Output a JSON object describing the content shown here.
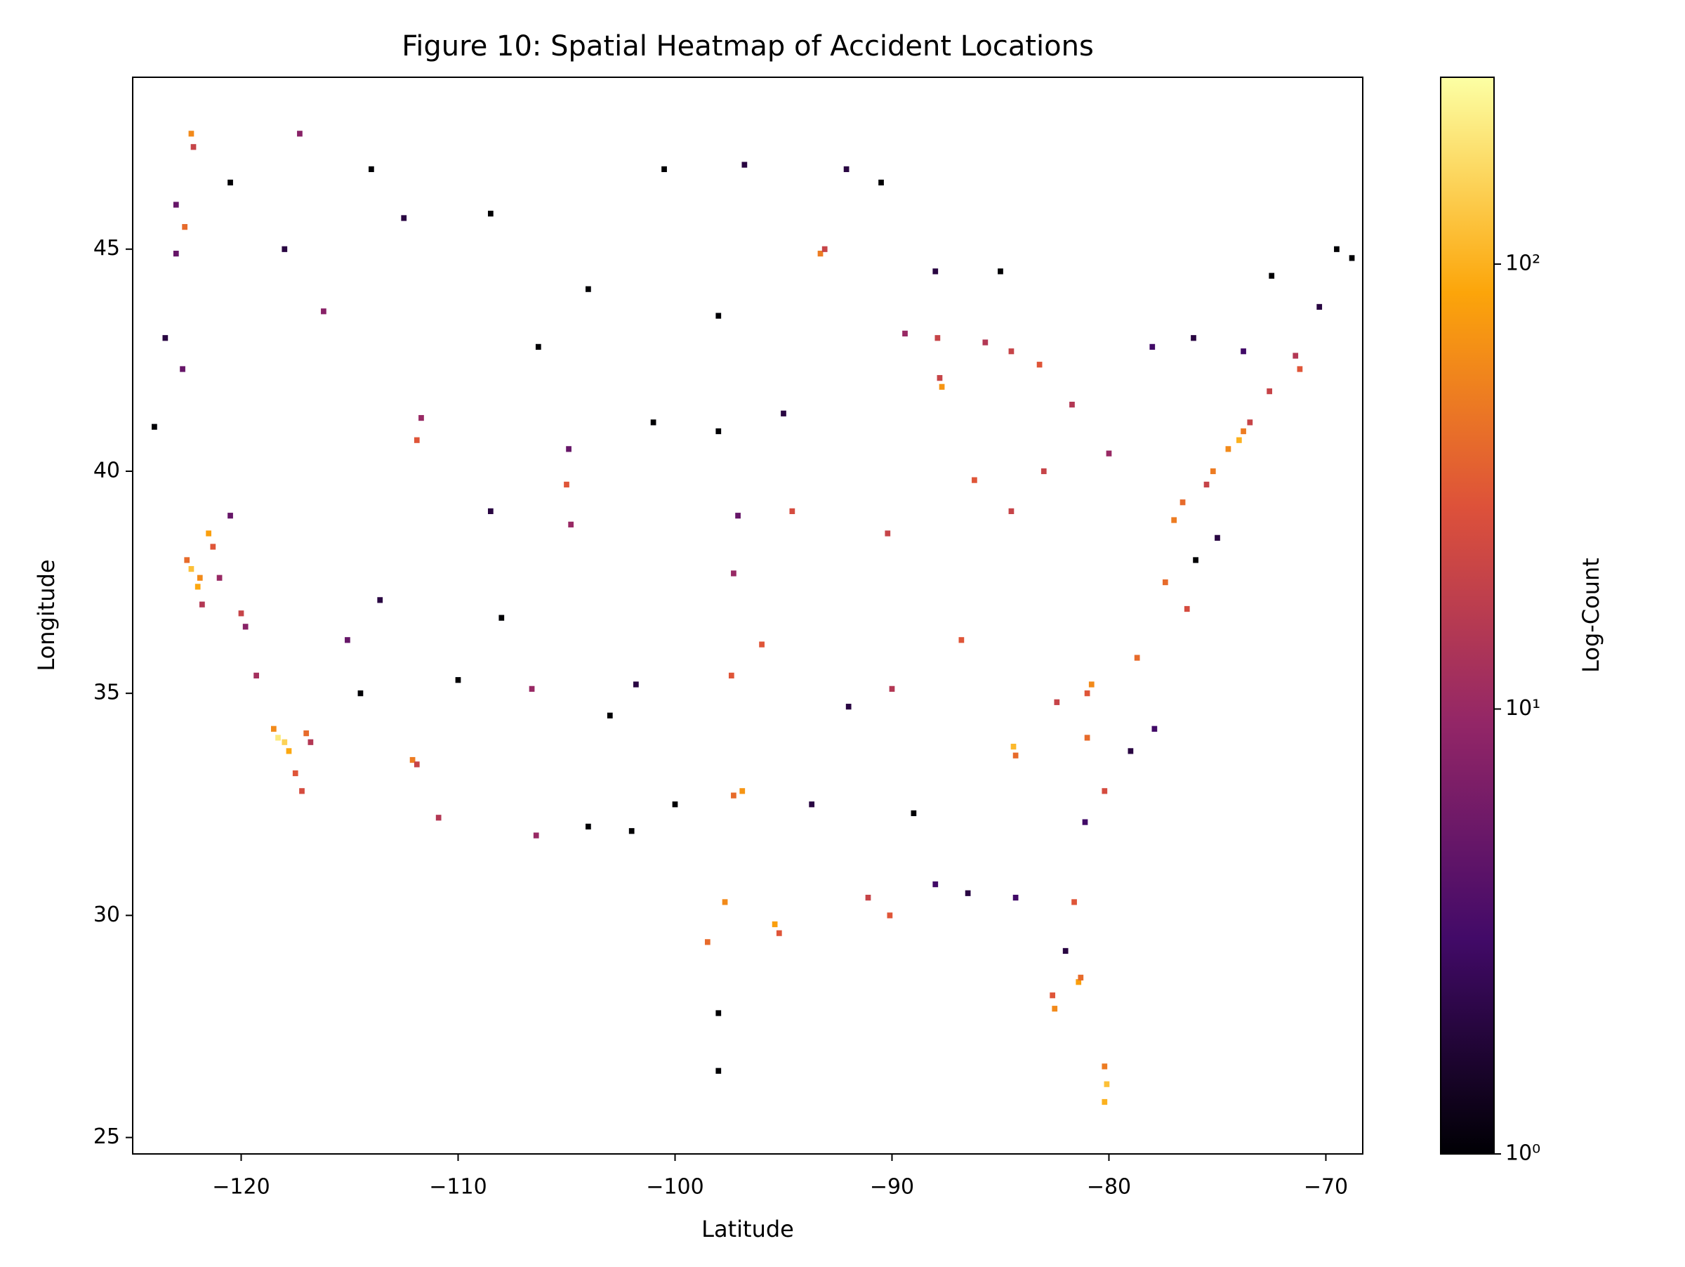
{
  "chart_data": {
    "type": "heatmap2d",
    "title": "Figure 10: Spatial Heatmap of Accident Locations",
    "x_label": "Latitude",
    "y_label": "Longitude",
    "colorbar_label": "Log-Count",
    "xlim": [
      -125.0,
      -68.3
    ],
    "ylim": [
      24.63,
      48.87
    ],
    "xticks": [
      {
        "value": -120,
        "label": "−120"
      },
      {
        "value": -110,
        "label": "−110"
      },
      {
        "value": -100,
        "label": "−100"
      },
      {
        "value": -90,
        "label": "−90"
      },
      {
        "value": -80,
        "label": "−80"
      },
      {
        "value": -70,
        "label": "−70"
      }
    ],
    "yticks": [
      25,
      30,
      35,
      40,
      45
    ],
    "clim": [
      1,
      263
    ],
    "color_scale": "log",
    "cticks": [
      {
        "value": 1,
        "label": "10⁰"
      },
      {
        "value": 10,
        "label": "10¹"
      },
      {
        "value": 100,
        "label": "10²"
      }
    ],
    "colormap": [
      "#000004",
      "#420a68",
      "#932667",
      "#dd513a",
      "#fca50a",
      "#fcffa4"
    ],
    "bin_width": 0.25,
    "bin_height": 0.13,
    "cells": [
      [
        -118.3,
        34.0,
        200
      ],
      [
        -118.0,
        33.9,
        150
      ],
      [
        -117.8,
        33.7,
        90
      ],
      [
        -118.5,
        34.2,
        60
      ],
      [
        -117.5,
        33.2,
        30
      ],
      [
        -117.2,
        32.8,
        25
      ],
      [
        -117.0,
        34.1,
        40
      ],
      [
        -116.8,
        33.9,
        15
      ],
      [
        -122.3,
        37.8,
        120
      ],
      [
        -122.0,
        37.4,
        90
      ],
      [
        -121.9,
        37.6,
        60
      ],
      [
        -121.5,
        38.6,
        80
      ],
      [
        -121.3,
        38.3,
        30
      ],
      [
        -122.5,
        38.0,
        40
      ],
      [
        -121.8,
        37.0,
        15
      ],
      [
        -121.0,
        37.6,
        10
      ],
      [
        -120.0,
        36.8,
        20
      ],
      [
        -119.8,
        36.5,
        8
      ],
      [
        -119.3,
        35.4,
        12
      ],
      [
        -120.5,
        39.0,
        5
      ],
      [
        -122.6,
        45.5,
        40
      ],
      [
        -122.3,
        47.6,
        60
      ],
      [
        -122.2,
        47.3,
        20
      ],
      [
        -123.0,
        44.9,
        5
      ],
      [
        -117.3,
        47.6,
        8
      ],
      [
        -112.1,
        33.5,
        50
      ],
      [
        -111.9,
        33.4,
        20
      ],
      [
        -110.9,
        32.2,
        15
      ],
      [
        -111.9,
        40.7,
        30
      ],
      [
        -111.7,
        41.2,
        10
      ],
      [
        -105.0,
        39.7,
        30
      ],
      [
        -104.8,
        38.8,
        10
      ],
      [
        -104.9,
        40.5,
        5
      ],
      [
        -95.4,
        29.8,
        80
      ],
      [
        -95.2,
        29.6,
        30
      ],
      [
        -96.9,
        32.8,
        70
      ],
      [
        -97.3,
        32.7,
        40
      ],
      [
        -97.7,
        30.3,
        60
      ],
      [
        -98.5,
        29.4,
        40
      ],
      [
        -97.4,
        35.4,
        30
      ],
      [
        -96.0,
        36.1,
        30
      ],
      [
        -94.6,
        39.1,
        25
      ],
      [
        -90.2,
        38.6,
        20
      ],
      [
        -90.1,
        30.0,
        30
      ],
      [
        -91.1,
        30.4,
        20
      ],
      [
        -93.3,
        44.9,
        50
      ],
      [
        -93.1,
        45.0,
        20
      ],
      [
        -87.7,
        41.9,
        70
      ],
      [
        -87.8,
        42.1,
        20
      ],
      [
        -86.2,
        39.8,
        30
      ],
      [
        -84.4,
        33.8,
        110
      ],
      [
        -84.3,
        33.6,
        40
      ],
      [
        -84.5,
        39.1,
        20
      ],
      [
        -83.0,
        40.0,
        20
      ],
      [
        -83.2,
        42.4,
        30
      ],
      [
        -81.7,
        41.5,
        15
      ],
      [
        -80.0,
        40.4,
        10
      ],
      [
        -80.8,
        35.2,
        60
      ],
      [
        -81.0,
        35.0,
        30
      ],
      [
        -78.7,
        35.8,
        40
      ],
      [
        -82.5,
        27.9,
        60
      ],
      [
        -82.6,
        28.2,
        30
      ],
      [
        -81.4,
        28.5,
        80
      ],
      [
        -81.3,
        28.6,
        40
      ],
      [
        -80.2,
        25.8,
        100
      ],
      [
        -80.1,
        26.2,
        120
      ],
      [
        -80.2,
        26.6,
        50
      ],
      [
        -81.6,
        30.3,
        30
      ],
      [
        -80.2,
        32.8,
        25
      ],
      [
        -81.0,
        34.0,
        40
      ],
      [
        -82.4,
        34.8,
        20
      ],
      [
        -86.8,
        36.2,
        30
      ],
      [
        -90.0,
        35.1,
        15
      ],
      [
        -77.4,
        37.5,
        40
      ],
      [
        -76.4,
        36.9,
        25
      ],
      [
        -77.0,
        38.9,
        50
      ],
      [
        -76.6,
        39.3,
        40
      ],
      [
        -75.2,
        40.0,
        50
      ],
      [
        -74.5,
        40.5,
        60
      ],
      [
        -74.0,
        40.7,
        100
      ],
      [
        -73.8,
        40.9,
        50
      ],
      [
        -73.5,
        41.1,
        20
      ],
      [
        -71.2,
        42.3,
        30
      ],
      [
        -71.4,
        42.6,
        15
      ],
      [
        -72.6,
        41.8,
        20
      ],
      [
        -75.5,
        39.7,
        20
      ],
      [
        -87.9,
        43.0,
        20
      ],
      [
        -89.4,
        43.1,
        10
      ],
      [
        -85.7,
        42.9,
        15
      ],
      [
        -84.5,
        42.7,
        20
      ],
      [
        -97.3,
        37.7,
        10
      ],
      [
        -97.1,
        39.0,
        5
      ],
      [
        -106.6,
        35.1,
        10
      ],
      [
        -106.4,
        31.8,
        10
      ],
      [
        -115.1,
        36.2,
        5
      ],
      [
        -122.7,
        42.3,
        5
      ],
      [
        -116.2,
        43.6,
        8
      ],
      [
        -123.0,
        46.0,
        5
      ],
      [
        -124.0,
        41.0,
        1
      ],
      [
        -123.5,
        43.0,
        2
      ],
      [
        -120.5,
        46.5,
        1
      ],
      [
        -118.0,
        45.0,
        2
      ],
      [
        -114.0,
        46.8,
        1
      ],
      [
        -112.5,
        45.7,
        2
      ],
      [
        -108.5,
        45.8,
        1
      ],
      [
        -104.0,
        44.1,
        1
      ],
      [
        -100.5,
        46.8,
        1
      ],
      [
        -96.8,
        46.9,
        2
      ],
      [
        -98.0,
        43.5,
        1
      ],
      [
        -101.0,
        41.1,
        1
      ],
      [
        -106.3,
        42.8,
        1
      ],
      [
        -108.5,
        39.1,
        2
      ],
      [
        -113.6,
        37.1,
        2
      ],
      [
        -114.5,
        35.0,
        1
      ],
      [
        -110.0,
        35.3,
        1
      ],
      [
        -108.0,
        36.7,
        1
      ],
      [
        -103.0,
        34.5,
        1
      ],
      [
        -101.8,
        35.2,
        2
      ],
      [
        -100.0,
        32.5,
        1
      ],
      [
        -102.0,
        31.9,
        1
      ],
      [
        -104.0,
        32.0,
        1
      ],
      [
        -98.0,
        27.8,
        1
      ],
      [
        -98.0,
        26.5,
        1
      ],
      [
        -92.0,
        34.7,
        2
      ],
      [
        -93.7,
        32.5,
        2
      ],
      [
        -89.0,
        32.3,
        1
      ],
      [
        -88.0,
        30.7,
        3
      ],
      [
        -86.5,
        30.5,
        2
      ],
      [
        -84.3,
        30.4,
        3
      ],
      [
        -82.0,
        29.2,
        2
      ],
      [
        -81.1,
        32.1,
        3
      ],
      [
        -79.0,
        33.7,
        2
      ],
      [
        -77.9,
        34.2,
        3
      ],
      [
        -76.0,
        38.0,
        1
      ],
      [
        -75.0,
        38.5,
        2
      ],
      [
        -78.0,
        42.8,
        3
      ],
      [
        -76.1,
        43.0,
        2
      ],
      [
        -73.8,
        42.7,
        3
      ],
      [
        -72.5,
        44.4,
        1
      ],
      [
        -70.3,
        43.7,
        2
      ],
      [
        -68.8,
        44.8,
        1
      ],
      [
        -69.5,
        45.0,
        1
      ],
      [
        -85.0,
        44.5,
        1
      ],
      [
        -88.0,
        44.5,
        2
      ],
      [
        -90.5,
        46.5,
        1
      ],
      [
        -92.1,
        46.8,
        2
      ],
      [
        -95.0,
        41.3,
        2
      ],
      [
        -98.0,
        40.9,
        1
      ]
    ]
  }
}
